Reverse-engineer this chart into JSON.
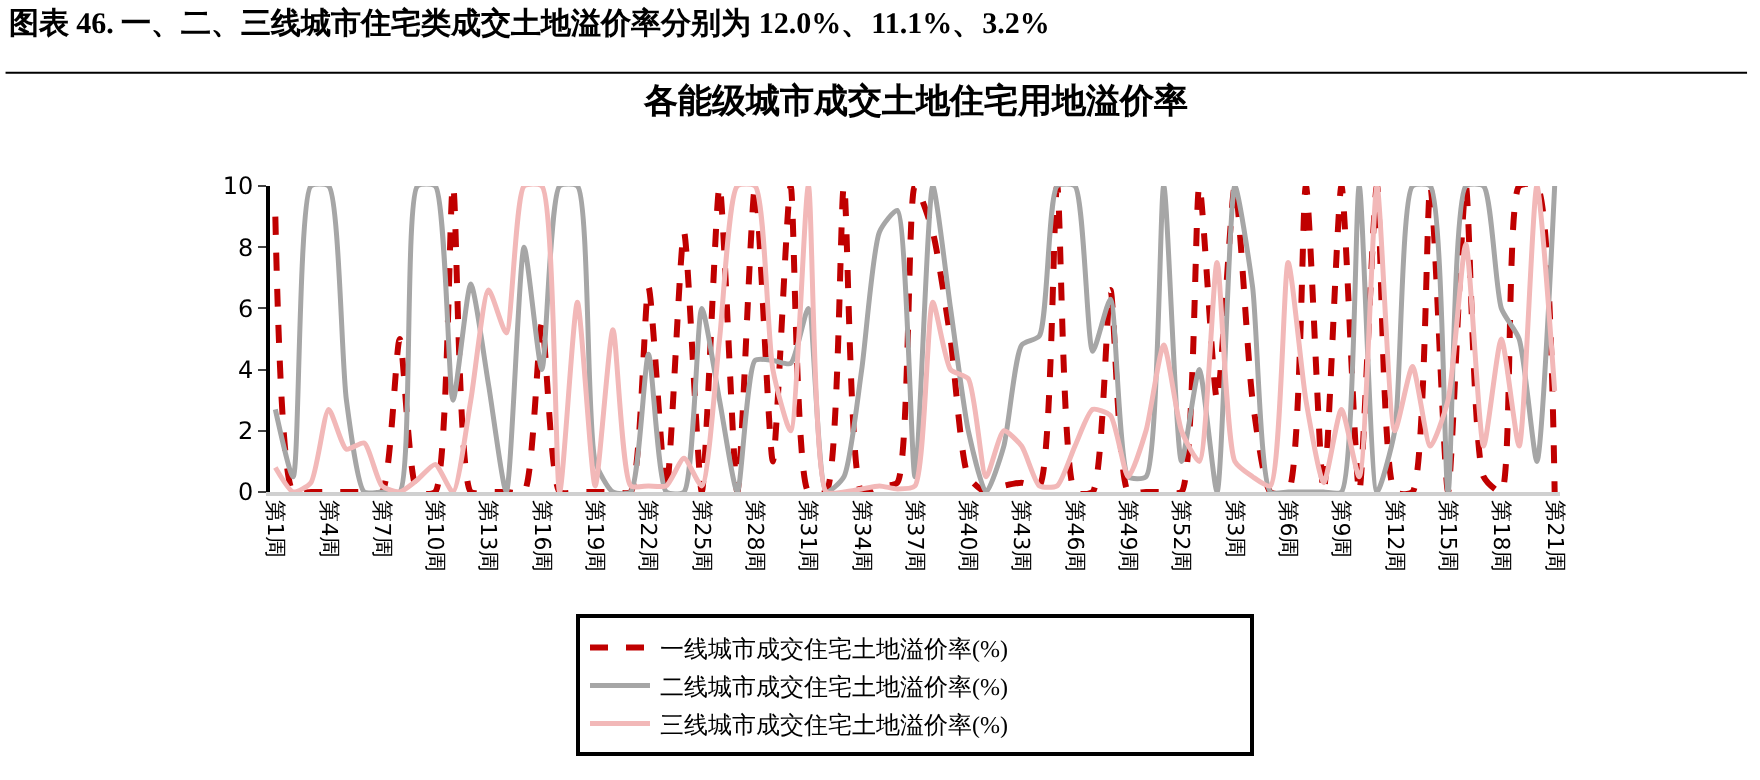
{
  "chart_data": {
    "type": "line",
    "title": "图表 46. 一、二、三线城市住宅类成交土地溢价率分别为 12.0%、11.1%、3.2%",
    "subtitle": "各能级城市成交土地住宅用地溢价率",
    "categories": [
      "第1周",
      null,
      null,
      "第4周",
      null,
      null,
      "第7周",
      null,
      null,
      "第10周",
      null,
      null,
      "第13周",
      null,
      null,
      "第16周",
      null,
      null,
      "第19周",
      null,
      null,
      "第22周",
      null,
      null,
      "第25周",
      null,
      null,
      "第28周",
      null,
      null,
      "第31周",
      null,
      null,
      "第34周",
      null,
      null,
      "第37周",
      null,
      null,
      "第40周",
      null,
      null,
      "第43周",
      null,
      null,
      "第46周",
      null,
      null,
      "第49周",
      null,
      null,
      "第52周",
      null,
      null,
      "第3周",
      null,
      null,
      "第6周",
      null,
      null,
      "第9周",
      null,
      null,
      "第12周",
      null,
      null,
      "第15周",
      null,
      null,
      "第18周",
      null,
      null,
      "第21周"
    ],
    "series": [
      {
        "name": "一线城市成交住宅土地溢价率(%)",
        "color": "#c00000",
        "line_style": "dashed",
        "values": [
          9,
          0,
          0,
          0,
          0,
          0,
          0,
          5,
          0,
          0,
          10,
          0,
          0,
          0,
          0,
          5.5,
          0,
          0,
          0,
          0,
          0,
          6.7,
          0,
          8.5,
          0,
          10,
          0,
          10,
          1,
          10,
          0,
          0,
          10,
          0,
          0.2,
          0.3,
          10,
          8.5,
          5,
          0.5,
          0,
          0.2,
          0.3,
          0.2,
          10,
          0,
          0,
          6.6,
          0,
          0,
          0,
          0,
          10,
          3,
          10,
          3,
          0,
          0,
          10,
          0,
          10,
          0,
          10,
          0,
          0,
          10,
          0,
          10,
          0.5,
          0,
          10,
          10,
          0
        ]
      },
      {
        "name": "二线城市成交住宅土地溢价率(%)",
        "color": "#a6a6a6",
        "line_style": "solid",
        "values": [
          2.7,
          0.5,
          10,
          10,
          3,
          0,
          0,
          0,
          10,
          10,
          3,
          6.8,
          3.5,
          0,
          8,
          4,
          10,
          10,
          1,
          0,
          0,
          4.5,
          0,
          0,
          6,
          3,
          0,
          4.3,
          4.3,
          4.2,
          6,
          0,
          0.5,
          4,
          8.5,
          9.2,
          0.5,
          10,
          6,
          2,
          0,
          1.5,
          4.8,
          5.1,
          10,
          10,
          4.6,
          6.3,
          0.5,
          0.5,
          10,
          1,
          4,
          0,
          10,
          6.7,
          0,
          0,
          0,
          0,
          0,
          10,
          0,
          2,
          10,
          10,
          0,
          10,
          10,
          6,
          5,
          1,
          10
        ]
      },
      {
        "name": "三线城市成交住宅土地溢价率(%)",
        "color": "#f2b8b8",
        "line_style": "solid",
        "values": [
          0.8,
          0,
          0.3,
          2.7,
          1.4,
          1.6,
          0.2,
          0,
          0.4,
          0.9,
          0,
          3,
          6.6,
          5.2,
          10,
          10,
          0,
          6.2,
          0.2,
          5.3,
          0.2,
          0.2,
          0.2,
          1.1,
          0.2,
          5,
          10,
          10,
          4,
          2,
          10,
          0,
          0,
          0.1,
          0.2,
          0.1,
          0.2,
          6.2,
          4,
          3.7,
          0.5,
          2,
          1.5,
          0.2,
          0.2,
          1.5,
          2.7,
          2.5,
          0.5,
          2,
          4.8,
          2,
          1,
          7.5,
          1,
          0.5,
          0.2,
          7.5,
          3,
          0.3,
          2.7,
          0.5,
          10,
          2,
          4.1,
          1.5,
          3,
          8.1,
          1.5,
          5,
          1.5,
          10,
          3.3
        ]
      }
    ],
    "ylim": [
      0,
      10
    ],
    "yticks": [
      0,
      2,
      4,
      6,
      8,
      10
    ],
    "grid": false,
    "legend": "bottom",
    "marker": "none"
  }
}
